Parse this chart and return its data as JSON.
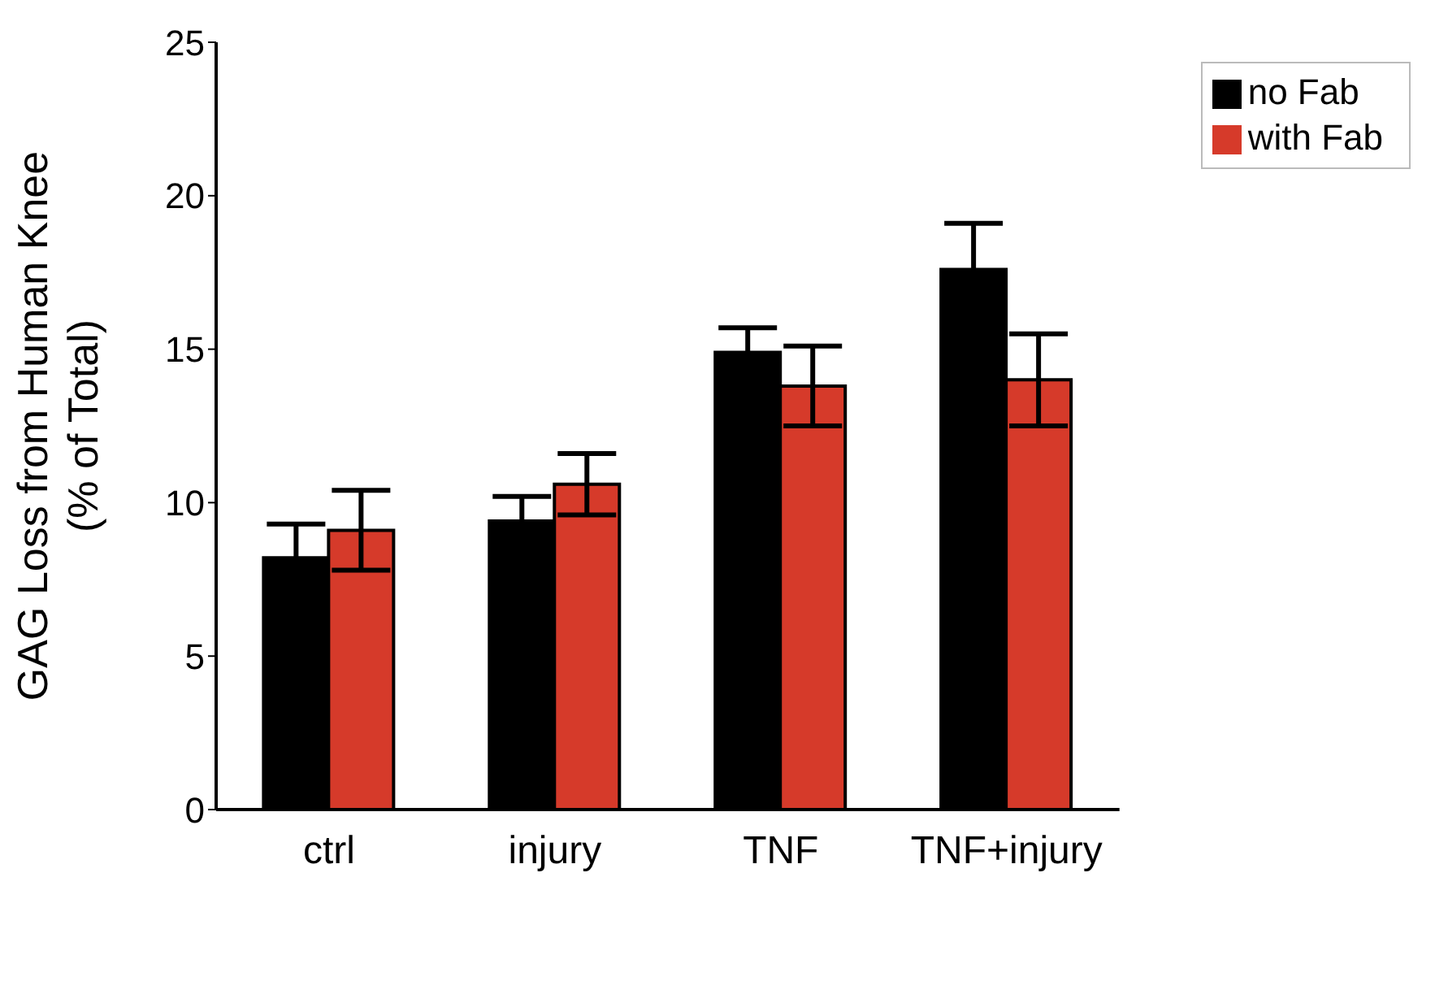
{
  "chart_data": {
    "type": "bar",
    "ylabel": "GAG Loss from Human Knee (% of Total)",
    "categories": [
      "ctrl",
      "injury",
      "TNF",
      "TNF+injury"
    ],
    "series": [
      {
        "name": "no Fab",
        "color": "#000000",
        "values": [
          8.2,
          9.4,
          14.9,
          17.6
        ],
        "errors": [
          1.1,
          0.8,
          0.8,
          1.5
        ]
      },
      {
        "name": "with Fab",
        "color": "#d63a2a",
        "values": [
          9.1,
          10.6,
          13.8,
          14.0
        ],
        "errors": [
          1.3,
          1.0,
          1.3,
          1.5
        ]
      }
    ],
    "ylim": [
      0,
      25
    ],
    "yticks": [
      0,
      5,
      10,
      15,
      20,
      25
    ],
    "grid": false,
    "legend": "top right"
  }
}
